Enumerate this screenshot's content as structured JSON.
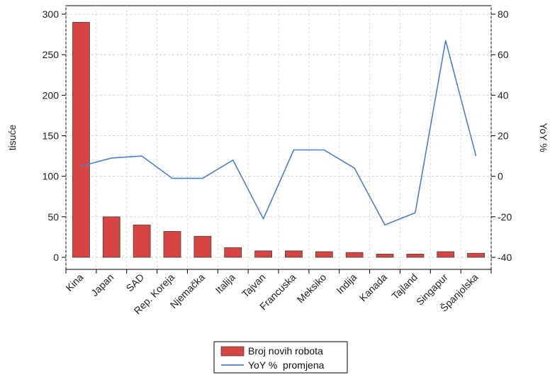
{
  "chart_data": {
    "type": "bar",
    "title": "",
    "categories": [
      "Kina",
      "Japan",
      "SAD",
      "Rep. Koreja",
      "Njemačka",
      "Italija",
      "Tajvan",
      "Francuska",
      "Meksiko",
      "Indija",
      "Kanada",
      "Tajland",
      "Singapur",
      "Španjolska"
    ],
    "series": [
      {
        "name": "Broj novih robota",
        "type": "bar",
        "axis": "left",
        "color": "#d64541",
        "values": [
          290,
          50,
          40,
          32,
          26,
          12,
          8,
          8,
          7,
          6,
          4,
          4,
          7,
          5
        ]
      },
      {
        "name": "YoY %  promjena",
        "type": "line",
        "axis": "right",
        "color": "#4a7ed0",
        "values": [
          5,
          9,
          10,
          -1,
          -1,
          8,
          -21,
          13,
          13,
          4,
          -24,
          -18,
          67,
          10
        ]
      }
    ],
    "ylabel": "tisuće",
    "ylabel_right": "YoY %",
    "xlabel": "",
    "ylim": [
      0,
      300
    ],
    "ylim_right": [
      -40,
      80
    ],
    "yticks": [
      0,
      50,
      100,
      150,
      200,
      250,
      300
    ],
    "yticks_right": [
      -40,
      -20,
      0,
      20,
      40,
      60,
      80
    ],
    "grid": true,
    "legend_position": "bottom-center"
  }
}
